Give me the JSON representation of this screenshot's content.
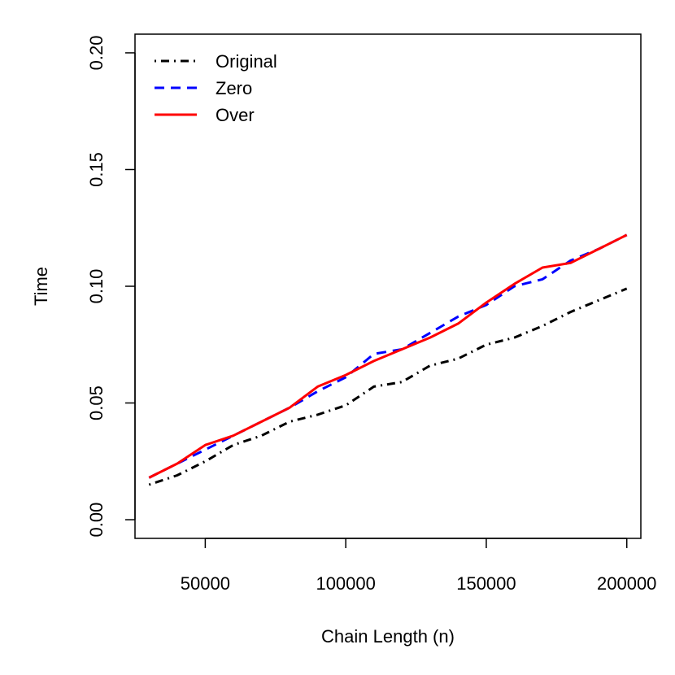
{
  "chart_data": {
    "type": "line",
    "xlabel": "Chain Length (n)",
    "ylabel": "Time",
    "xlim": [
      25000,
      205000
    ],
    "ylim": [
      -0.008,
      0.208
    ],
    "x_ticks": [
      50000,
      100000,
      150000,
      200000
    ],
    "y_ticks": [
      0.0,
      0.05,
      0.1,
      0.15,
      0.2
    ],
    "x_tick_labels": [
      "50000",
      "100000",
      "150000",
      "200000"
    ],
    "y_tick_labels": [
      "0.00",
      "0.05",
      "0.10",
      "0.15",
      "0.20"
    ],
    "grid": false,
    "legend_position": "top-left",
    "x": [
      30000,
      40000,
      50000,
      60000,
      70000,
      80000,
      90000,
      100000,
      110000,
      120000,
      130000,
      140000,
      150000,
      160000,
      170000,
      180000,
      190000,
      200000
    ],
    "series": [
      {
        "name": "Original",
        "color": "#000000",
        "dash": "dotdash",
        "values": [
          0.015,
          0.019,
          0.025,
          0.032,
          0.036,
          0.042,
          0.045,
          0.049,
          0.057,
          0.059,
          0.066,
          0.069,
          0.075,
          0.078,
          0.083,
          0.089,
          0.094,
          0.099
        ]
      },
      {
        "name": "Zero",
        "color": "#0000ff",
        "dash": "dashed",
        "values": [
          0.018,
          0.024,
          0.03,
          0.036,
          0.042,
          0.048,
          0.055,
          0.061,
          0.071,
          0.073,
          0.08,
          0.087,
          0.092,
          0.1,
          0.103,
          0.111,
          0.116,
          0.122
        ]
      },
      {
        "name": "Over",
        "color": "#ff0000",
        "dash": "solid",
        "values": [
          0.018,
          0.024,
          0.032,
          0.036,
          0.042,
          0.048,
          0.057,
          0.062,
          0.068,
          0.073,
          0.078,
          0.084,
          0.093,
          0.101,
          0.108,
          0.11,
          0.116,
          0.122
        ]
      }
    ]
  }
}
